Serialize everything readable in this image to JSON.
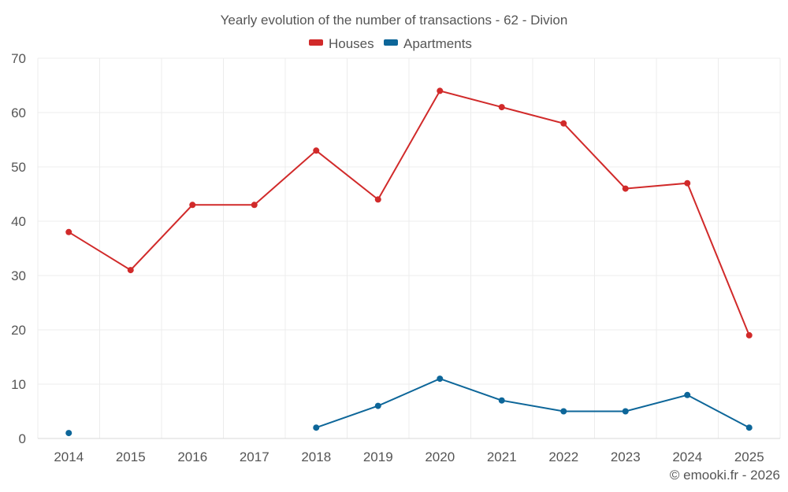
{
  "chart_data": {
    "type": "line",
    "title": "Yearly evolution of the number of transactions - 62 - Divion",
    "categories": [
      "2014",
      "2015",
      "2016",
      "2017",
      "2018",
      "2019",
      "2020",
      "2021",
      "2022",
      "2023",
      "2024",
      "2025"
    ],
    "series": [
      {
        "name": "Houses",
        "color": "#d12a2a",
        "values": [
          38,
          31,
          43,
          43,
          53,
          44,
          64,
          61,
          58,
          46,
          47,
          19
        ]
      },
      {
        "name": "Apartments",
        "color": "#0d6699",
        "values": [
          1,
          null,
          null,
          null,
          2,
          6,
          11,
          7,
          5,
          5,
          8,
          2
        ]
      }
    ],
    "ylim": [
      0,
      70
    ],
    "yticks": [
      0,
      10,
      20,
      30,
      40,
      50,
      60,
      70
    ],
    "xlabel": "",
    "ylabel": "",
    "grid": true,
    "legend": "top-center"
  },
  "credit": "© emooki.fr - 2026"
}
